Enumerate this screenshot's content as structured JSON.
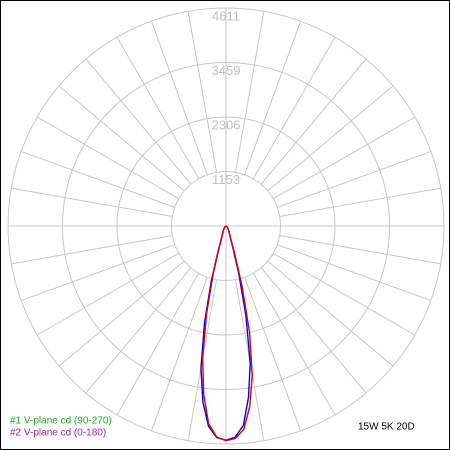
{
  "chart_data": {
    "type": "polar",
    "x": [
      -90,
      -60,
      -40,
      -30,
      -25,
      -20,
      -17.5,
      -15,
      -12.5,
      -10,
      -7.5,
      -5,
      -2.5,
      0,
      2.5,
      5,
      7.5,
      10,
      12.5,
      15,
      17.5,
      20,
      25,
      30,
      40,
      60,
      90
    ],
    "rlim": [
      0,
      4611
    ],
    "rticks": [
      1153,
      2306,
      3459,
      4611
    ],
    "series": [
      {
        "name": "#1 V-plane cd (90-270)",
        "color": "#0000ff",
        "values": [
          0,
          20,
          60,
          120,
          170,
          300,
          550,
          1200,
          2100,
          3050,
          3750,
          4250,
          4480,
          4530,
          4470,
          4230,
          3650,
          2950,
          1950,
          1050,
          480,
          270,
          160,
          120,
          60,
          20,
          0
        ]
      },
      {
        "name": "#2 V-plane cd (0-180)",
        "color": "#e00000",
        "values": [
          0,
          20,
          55,
          110,
          150,
          260,
          480,
          1050,
          1900,
          2850,
          3600,
          4200,
          4470,
          4540,
          4500,
          4320,
          3850,
          3200,
          2300,
          1300,
          600,
          320,
          180,
          130,
          60,
          20,
          0
        ]
      }
    ],
    "legend_colors": [
      "#22aa22",
      "#aa22aa"
    ],
    "annotation": "15W 5K 20D"
  }
}
